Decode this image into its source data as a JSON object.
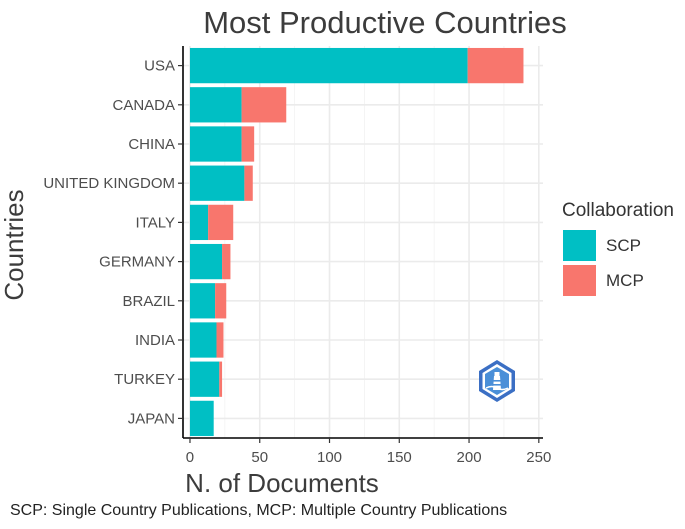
{
  "chart_data": {
    "type": "bar",
    "orientation": "horizontal",
    "stacked": true,
    "title": "Most Productive Countries",
    "xlabel": "N. of Documents",
    "ylabel": "Countries",
    "categories": [
      "USA",
      "CANADA",
      "CHINA",
      "UNITED KINGDOM",
      "ITALY",
      "GERMANY",
      "BRAZIL",
      "INDIA",
      "TURKEY",
      "JAPAN"
    ],
    "series": [
      {
        "name": "SCP",
        "color": "#00BFC4",
        "values": [
          199,
          37,
          37,
          39,
          13,
          23,
          18,
          19,
          21,
          17
        ]
      },
      {
        "name": "MCP",
        "color": "#F8766D",
        "values": [
          40,
          32,
          9,
          6,
          18,
          6,
          8,
          5,
          2,
          0
        ]
      }
    ],
    "xlim": [
      -5,
      253
    ],
    "xticks": [
      "0",
      "50",
      "100",
      "150",
      "200",
      "250"
    ],
    "grid": true,
    "legend": {
      "title": "Collaboration",
      "position": "right"
    }
  },
  "logo_icon": "lighthouse-badge-icon",
  "caption": "SCP: Single Country Publications, MCP: Multiple Country Publications"
}
